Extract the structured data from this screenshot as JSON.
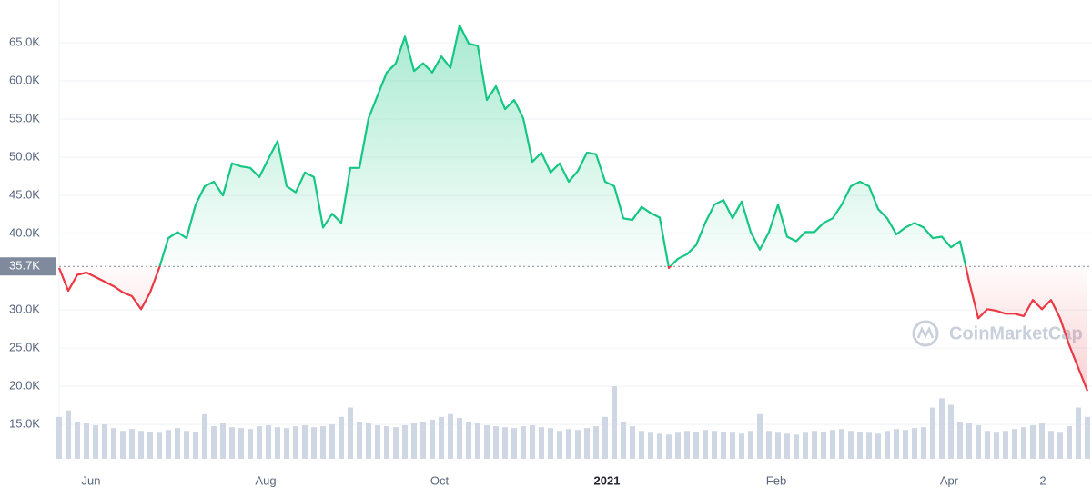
{
  "chart_data": {
    "type": "line",
    "watermark": "CoinMarketCap",
    "reference": {
      "value": 35700,
      "label": "35.7K"
    },
    "up_color": "#16c784",
    "down_color": "#ea3943",
    "volume_color": "#cfd6e4",
    "ylim": [
      10500,
      70000
    ],
    "yticks": [
      {
        "value": 15000,
        "label": "15.0K"
      },
      {
        "value": 20000,
        "label": "20.0K"
      },
      {
        "value": 25000,
        "label": "25.0K"
      },
      {
        "value": 30000,
        "label": "30.0K"
      },
      {
        "value": 40000,
        "label": "40.0K"
      },
      {
        "value": 45000,
        "label": "45.0K"
      },
      {
        "value": 50000,
        "label": "50.0K"
      },
      {
        "value": 55000,
        "label": "55.0K"
      },
      {
        "value": 60000,
        "label": "60.0K"
      },
      {
        "value": 65000,
        "label": "65.0K"
      }
    ],
    "xlim": [
      0,
      113
    ],
    "xticks": [
      {
        "value": 3.5,
        "label": "Jun"
      },
      {
        "value": 22.7,
        "label": "Aug"
      },
      {
        "value": 41.8,
        "label": "Oct"
      },
      {
        "value": 60.2,
        "label": "2021",
        "bold": true
      },
      {
        "value": 78.8,
        "label": "Feb"
      },
      {
        "value": 97.8,
        "label": "Apr"
      },
      {
        "value": 108.1,
        "label": "2"
      }
    ],
    "grid": true,
    "values": [
      35500,
      32500,
      34600,
      34900,
      34300,
      33700,
      33100,
      32300,
      31800,
      30100,
      32300,
      35500,
      39400,
      40200,
      39400,
      43800,
      46200,
      46800,
      45000,
      49200,
      48800,
      48600,
      47400,
      49800,
      52100,
      46200,
      45400,
      48000,
      47400,
      40800,
      42600,
      41400,
      48600,
      48600,
      55100,
      58100,
      61100,
      62300,
      65800,
      61300,
      62300,
      61100,
      63200,
      61700,
      67300,
      64900,
      64600,
      57500,
      59300,
      56300,
      57500,
      55100,
      49400,
      50600,
      48000,
      49200,
      46800,
      48200,
      50600,
      50400,
      46800,
      46200,
      42000,
      41800,
      43500,
      42700,
      42100,
      35500,
      36700,
      37300,
      38500,
      41400,
      43800,
      44400,
      42000,
      44200,
      40200,
      37900,
      40200,
      43800,
      39600,
      39000,
      40200,
      40200,
      41400,
      42000,
      43800,
      46200,
      46800,
      46200,
      43200,
      42000,
      39900,
      40800,
      41400,
      40800,
      39400,
      39600,
      38200,
      39000,
      33700,
      28900,
      30100,
      29900,
      29500,
      29500,
      29200,
      31300,
      30100,
      31300,
      28900,
      25400,
      22400,
      19400
    ],
    "volume": [
      45,
      52,
      40,
      38,
      36,
      37,
      33,
      30,
      32,
      30,
      29,
      28,
      31,
      33,
      30,
      29,
      48,
      35,
      38,
      34,
      33,
      32,
      35,
      36,
      34,
      33,
      35,
      36,
      34,
      35,
      37,
      45,
      55,
      40,
      38,
      36,
      35,
      34,
      36,
      38,
      40,
      42,
      45,
      48,
      44,
      40,
      38,
      36,
      35,
      34,
      33,
      35,
      36,
      34,
      33,
      30,
      32,
      31,
      33,
      35,
      45,
      78,
      40,
      35,
      30,
      28,
      27,
      26,
      28,
      30,
      29,
      31,
      30,
      29,
      28,
      27,
      30,
      48,
      30,
      28,
      27,
      26,
      28,
      30,
      29,
      31,
      32,
      30,
      29,
      28,
      27,
      30,
      32,
      31,
      33,
      34,
      55,
      65,
      58,
      40,
      38,
      36,
      30,
      28,
      30,
      32,
      34,
      36,
      38,
      30,
      28,
      35,
      55,
      45
    ]
  }
}
